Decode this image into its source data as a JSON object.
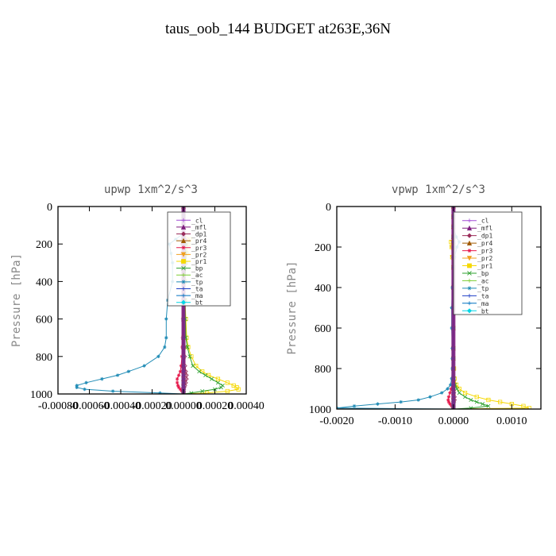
{
  "title": "taus_oob_144  BUDGET at263E,36N",
  "chart_data": [
    {
      "type": "line",
      "title": "upwp  1xm^2/s^3",
      "ylabel": "Pressure [hPa]",
      "xlabel": "",
      "xlim": [
        -0.0008,
        0.0004
      ],
      "ylim": [
        1000,
        0
      ],
      "xticks": [
        -0.0008,
        -0.0006,
        -0.0004,
        -0.0002,
        0.0,
        0.0002,
        0.0004
      ],
      "xtick_labels": [
        "-0.00080",
        "-0.00060",
        "-0.00040",
        "-0.00020",
        "0.00000",
        "0.00020",
        "0.00040"
      ],
      "yticks": [
        0,
        200,
        400,
        600,
        800,
        1000
      ],
      "ytick_labels": [
        "0",
        "200",
        "400",
        "600",
        "800",
        "1000"
      ],
      "legend_position": "top-right",
      "y_levels": [
        0,
        50,
        100,
        150,
        175,
        200,
        250,
        300,
        400,
        500,
        600,
        700,
        750,
        800,
        850,
        880,
        900,
        920,
        940,
        955,
        965,
        975,
        985,
        995,
        1000
      ],
      "series": [
        {
          "name": "_cl",
          "color": "#a24bd6",
          "values": [
            0,
            0,
            0,
            0,
            0,
            0,
            0,
            0,
            0,
            0,
            0,
            0,
            0,
            0,
            0,
            0,
            0,
            0,
            0,
            0,
            0,
            0,
            0,
            0,
            0
          ]
        },
        {
          "name": "_mfl",
          "color": "#7f1f7f",
          "values": [
            0,
            0,
            0,
            0,
            0,
            0,
            0,
            0,
            0,
            0,
            0,
            0,
            0,
            0,
            0,
            0,
            0,
            0,
            0,
            0,
            0,
            0,
            0,
            0,
            0
          ]
        },
        {
          "name": "_dp1",
          "color": "#9b2d5a",
          "values": [
            0,
            0,
            0,
            0,
            1e-05,
            1.5e-05,
            1e-05,
            8e-06,
            5e-06,
            4e-06,
            3e-06,
            4e-06,
            5e-06,
            8e-06,
            1e-05,
            1.5e-05,
            2e-05,
            2e-05,
            1.5e-05,
            1e-05,
            5e-06,
            3e-06,
            1e-06,
            0,
            0
          ]
        },
        {
          "name": "_pr4",
          "color": "#a05a00",
          "values": [
            0,
            0,
            0,
            0,
            0,
            0,
            0,
            0,
            0,
            0,
            0,
            0,
            0,
            0,
            0,
            0,
            0,
            0,
            0,
            0,
            0,
            0,
            0,
            0,
            0
          ]
        },
        {
          "name": "_pr3",
          "color": "#e6194b",
          "values": [
            0,
            0,
            0,
            0,
            -5e-06,
            -1e-05,
            -1e-05,
            -8e-06,
            -6e-06,
            -5e-06,
            -5e-06,
            -6e-06,
            -8e-06,
            -1e-05,
            -1.5e-05,
            -2e-05,
            -3e-05,
            -4e-05,
            -4e-05,
            -3.5e-05,
            -3e-05,
            -2e-05,
            -1e-05,
            0,
            0
          ]
        },
        {
          "name": "_pr2",
          "color": "#f0a020",
          "values": [
            0,
            0,
            0,
            0,
            0,
            0,
            0,
            0,
            0,
            0,
            0,
            0,
            0,
            0,
            0,
            0,
            0,
            0,
            0,
            0,
            0,
            0,
            0,
            0,
            0
          ]
        },
        {
          "name": "_pr1",
          "color": "#f5d800",
          "values": [
            0,
            0,
            0,
            0,
            4e-05,
            3e-05,
            2e-05,
            1.5e-05,
            1e-05,
            1e-05,
            1.5e-05,
            2e-05,
            3e-05,
            5e-05,
            8e-05,
            0.00012,
            0.00016,
            0.00022,
            0.00028,
            0.00032,
            0.00034,
            0.00035,
            0.00028,
            0.00015,
            0
          ]
        },
        {
          "name": "_bp",
          "color": "#2ca02c",
          "values": [
            0,
            0,
            0,
            0,
            -5e-06,
            1.5e-05,
            1.5e-05,
            1.5e-05,
            1e-05,
            1e-05,
            1.2e-05,
            1.5e-05,
            2.5e-05,
            4e-05,
            6e-05,
            0.0001,
            0.00014,
            0.00018,
            0.00022,
            0.00025,
            0.00024,
            0.0002,
            0.00012,
            5e-05,
            0
          ]
        },
        {
          "name": "_ac",
          "color": "#7ccd32",
          "values": [
            0,
            0,
            0,
            0,
            0,
            0,
            0,
            0,
            0,
            0,
            0,
            0,
            0,
            0,
            0,
            0,
            0,
            0,
            0,
            0,
            0,
            0,
            0,
            0,
            0
          ]
        },
        {
          "name": "_tp",
          "color": "#1f8bb5",
          "values": [
            0,
            0,
            0,
            -1e-05,
            -5e-05,
            -9e-05,
            -8e-05,
            -7e-05,
            -7e-05,
            -0.0001,
            -0.00011,
            -0.00011,
            -0.00012,
            -0.00016,
            -0.00025,
            -0.00035,
            -0.00042,
            -0.00052,
            -0.00062,
            -0.00068,
            -0.00068,
            -0.00063,
            -0.00045,
            -0.00015,
            0
          ]
        },
        {
          "name": "_ta",
          "color": "#1f3fc6",
          "values": [
            0,
            0,
            0,
            0,
            0,
            0,
            0,
            0,
            0,
            0,
            0,
            0,
            0,
            0,
            0,
            0,
            0,
            0,
            0,
            0,
            0,
            0,
            0,
            0,
            0
          ]
        },
        {
          "name": "_ma",
          "color": "#0070c0",
          "values": [
            0,
            0,
            0,
            0,
            0,
            0,
            0,
            0,
            0,
            0,
            0,
            0,
            0,
            0,
            0,
            0,
            0,
            0,
            0,
            0,
            0,
            0,
            0,
            0,
            0
          ]
        },
        {
          "name": "_bt",
          "color": "#00d6e6",
          "values": [
            0,
            0,
            0,
            0,
            0,
            0,
            0,
            0,
            0,
            0,
            0,
            0,
            0,
            0,
            0,
            0,
            0,
            0,
            0,
            0,
            0,
            0,
            0,
            0,
            0
          ]
        }
      ]
    },
    {
      "type": "line",
      "title": "vpwp  1xm^2/s^3",
      "ylabel": "Pressure [hPa]",
      "xlabel": "",
      "xlim": [
        -0.002,
        0.0015
      ],
      "ylim": [
        1000,
        0
      ],
      "xticks": [
        -0.002,
        -0.001,
        0.0,
        0.001
      ],
      "xtick_labels": [
        "-0.0020",
        "-0.0010",
        "0.0000",
        "0.0010"
      ],
      "yticks": [
        0,
        200,
        400,
        600,
        800,
        1000
      ],
      "ytick_labels": [
        "0",
        "200",
        "400",
        "600",
        "800",
        "1000"
      ],
      "legend_position": "top-right",
      "y_levels": [
        0,
        50,
        100,
        150,
        175,
        200,
        250,
        300,
        400,
        500,
        600,
        700,
        750,
        800,
        850,
        880,
        900,
        920,
        940,
        955,
        965,
        975,
        985,
        995,
        1000
      ],
      "series": [
        {
          "name": "_cl",
          "color": "#a24bd6",
          "values": [
            0,
            0,
            0,
            0,
            0,
            0,
            0,
            0,
            0,
            0,
            0,
            0,
            0,
            0,
            0,
            0,
            0,
            0,
            0,
            0,
            0,
            0,
            0,
            0,
            0
          ]
        },
        {
          "name": "_mfl",
          "color": "#7f1f7f",
          "values": [
            0,
            0,
            0,
            0,
            0,
            0,
            0,
            0,
            0,
            0,
            0,
            0,
            0,
            0,
            0,
            0,
            0,
            0,
            0,
            0,
            0,
            0,
            0,
            0,
            0
          ]
        },
        {
          "name": "_dp1",
          "color": "#9b2d5a",
          "values": [
            0,
            0,
            0,
            0,
            0,
            0,
            0,
            0,
            0,
            0,
            0,
            0,
            0,
            0,
            0,
            0,
            0,
            1e-05,
            2e-05,
            2e-05,
            1e-05,
            0,
            0,
            0,
            0
          ]
        },
        {
          "name": "_pr4",
          "color": "#a05a00",
          "values": [
            0,
            0,
            0,
            0,
            0,
            0,
            0,
            0,
            0,
            0,
            0,
            0,
            0,
            0,
            0,
            0,
            0,
            0,
            0,
            0,
            0,
            0,
            0,
            0,
            0
          ]
        },
        {
          "name": "_pr3",
          "color": "#e6194b",
          "values": [
            0,
            0,
            0,
            0,
            0,
            0,
            0,
            0,
            0,
            0,
            0,
            0,
            0,
            0,
            0,
            -2e-05,
            -4e-05,
            -6e-05,
            -8e-05,
            -9e-05,
            -8e-05,
            -6e-05,
            -3e-05,
            0,
            0
          ]
        },
        {
          "name": "_pr2",
          "color": "#f0a020",
          "values": [
            0,
            0,
            0,
            0,
            -2e-05,
            -3e-05,
            -2e-05,
            0,
            0,
            0,
            0,
            0,
            0,
            0,
            0,
            0,
            0,
            0,
            0,
            0,
            0,
            0,
            0,
            0,
            0
          ]
        },
        {
          "name": "_pr1",
          "color": "#f5d800",
          "values": [
            0,
            0,
            0,
            0,
            -4e-05,
            -3e-05,
            -2e-05,
            0,
            0,
            0,
            0,
            0,
            0,
            1e-05,
            2e-05,
            5e-05,
            0.0001,
            0.0002,
            0.0004,
            0.0006,
            0.0008,
            0.001,
            0.0012,
            0.0013,
            0
          ]
        },
        {
          "name": "_bp",
          "color": "#2ca02c",
          "values": [
            0,
            0,
            0,
            0,
            0,
            0,
            0,
            0,
            0,
            0,
            0,
            0,
            0,
            0,
            1e-05,
            3e-05,
            6e-05,
            0.0001,
            0.0002,
            0.0003,
            0.0004,
            0.0005,
            0.0006,
            0.0003,
            0
          ]
        },
        {
          "name": "_ac",
          "color": "#7ccd32",
          "values": [
            0,
            0,
            0,
            0,
            0,
            0,
            0,
            0,
            0,
            0,
            0,
            0,
            0,
            0,
            0,
            0,
            0,
            0,
            0,
            0,
            0,
            0,
            0,
            0,
            0
          ]
        },
        {
          "name": "_tp",
          "color": "#1f8bb5",
          "values": [
            0,
            0,
            0,
            5e-05,
            0.0001,
            6e-05,
            2e-05,
            0,
            -2e-05,
            -3e-05,
            -3e-05,
            -2e-05,
            -2e-05,
            -2e-05,
            -3e-05,
            -5e-05,
            -0.0001,
            -0.0002,
            -0.0004,
            -0.0006,
            -0.0009,
            -0.0013,
            -0.0017,
            -0.002,
            0
          ]
        },
        {
          "name": "_ta",
          "color": "#1f3fc6",
          "values": [
            0,
            0,
            0,
            0,
            0,
            0,
            0,
            0,
            0,
            0,
            0,
            0,
            0,
            0,
            0,
            0,
            0,
            0,
            0,
            0,
            0,
            0,
            0,
            0,
            0
          ]
        },
        {
          "name": "_ma",
          "color": "#0070c0",
          "values": [
            0,
            0,
            0,
            0,
            0,
            0,
            0,
            0,
            0,
            0,
            0,
            0,
            0,
            0,
            0,
            0,
            0,
            0,
            0,
            0,
            0,
            0,
            0,
            0,
            0
          ]
        },
        {
          "name": "_bt",
          "color": "#00d6e6",
          "values": [
            0,
            0,
            0,
            0,
            0,
            0,
            0,
            0,
            0,
            0,
            0,
            0,
            0,
            0,
            0,
            0,
            0,
            0,
            0,
            0,
            0,
            0,
            0,
            0,
            0
          ]
        }
      ]
    }
  ]
}
